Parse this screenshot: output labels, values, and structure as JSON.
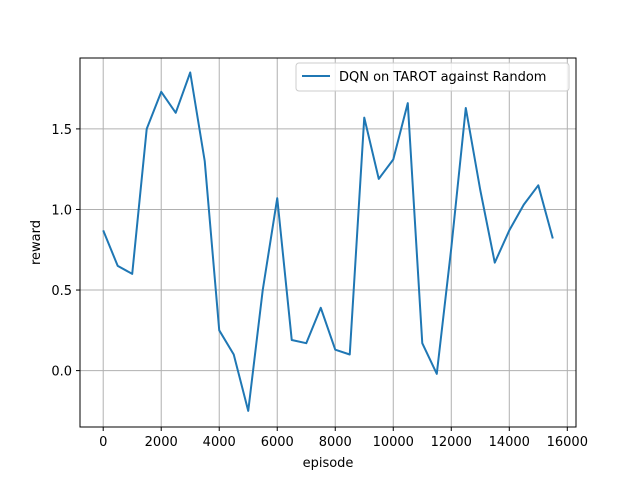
{
  "chart_data": {
    "type": "line",
    "title": "",
    "xlabel": "episode",
    "ylabel": "reward",
    "xlim": [
      -800,
      16300
    ],
    "ylim": [
      -0.35,
      1.94
    ],
    "xticks": [
      0,
      2000,
      4000,
      6000,
      8000,
      10000,
      12000,
      14000,
      16000
    ],
    "yticks": [
      0.0,
      0.5,
      1.0,
      1.5
    ],
    "ytick_labels": [
      "0.0",
      "0.5",
      "1.0",
      "1.5"
    ],
    "grid": true,
    "legend_position": "top-right",
    "colors": {
      "series": "#1f77b4",
      "grid": "#b0b0b0",
      "axes": "#000000"
    },
    "series": [
      {
        "name": "DQN on TAROT against Random",
        "x": [
          0,
          500,
          1000,
          1500,
          2000,
          2500,
          3000,
          3500,
          4000,
          4500,
          5000,
          5500,
          6000,
          6500,
          7000,
          7500,
          8000,
          8500,
          9000,
          9500,
          10000,
          10500,
          11000,
          11500,
          12000,
          12500,
          13000,
          13500,
          14000,
          14500,
          15000,
          15500
        ],
        "values": [
          0.87,
          0.65,
          0.6,
          1.5,
          1.73,
          1.6,
          1.85,
          1.3,
          0.25,
          0.1,
          -0.25,
          0.5,
          1.07,
          0.19,
          0.17,
          0.39,
          0.13,
          0.1,
          1.57,
          1.19,
          1.31,
          1.66,
          0.17,
          -0.02,
          0.76,
          1.63,
          1.12,
          0.67,
          0.87,
          1.03,
          1.15,
          0.82
        ]
      }
    ]
  }
}
